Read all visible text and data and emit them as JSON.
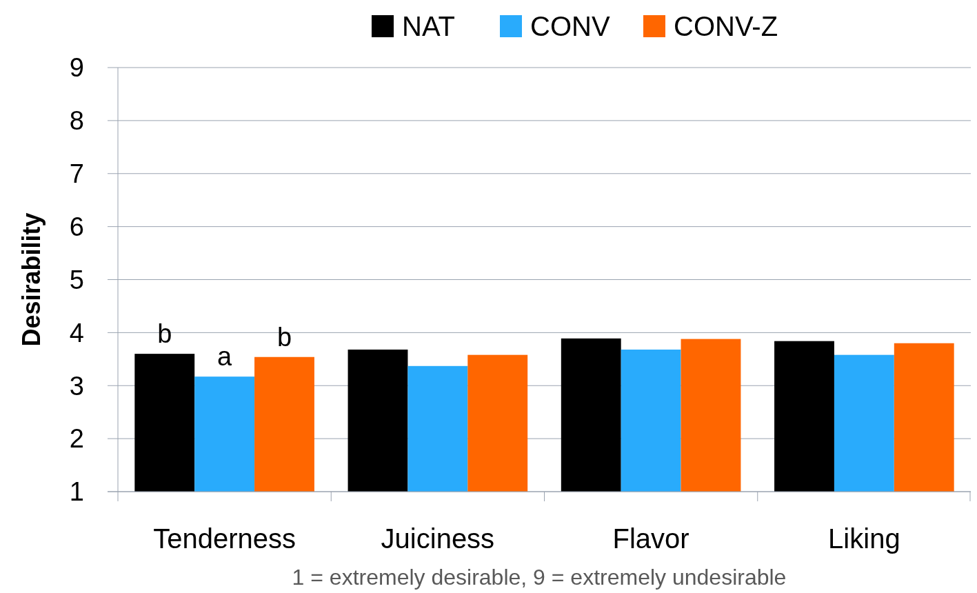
{
  "chart_data": {
    "type": "bar",
    "ylabel": "Desirability",
    "categories": [
      "Tenderness",
      "Juiciness",
      "Flavor",
      "Liking"
    ],
    "series": [
      {
        "name": "NAT",
        "color": "#000000",
        "values": [
          3.6,
          3.68,
          3.89,
          3.84
        ]
      },
      {
        "name": "CONV",
        "color": "#29abfc",
        "values": [
          3.17,
          3.37,
          3.68,
          3.58
        ]
      },
      {
        "name": "CONV-Z",
        "color": "#ff6600",
        "values": [
          3.54,
          3.58,
          3.88,
          3.8
        ]
      }
    ],
    "ylim": [
      1,
      9
    ],
    "yticks": [
      1,
      2,
      3,
      4,
      5,
      6,
      7,
      8,
      9
    ],
    "grid": "y",
    "legend": "top",
    "annotations": [
      "b",
      "a",
      "b",
      "1 = extremely desirable, 9 = extremely undesirable"
    ]
  }
}
